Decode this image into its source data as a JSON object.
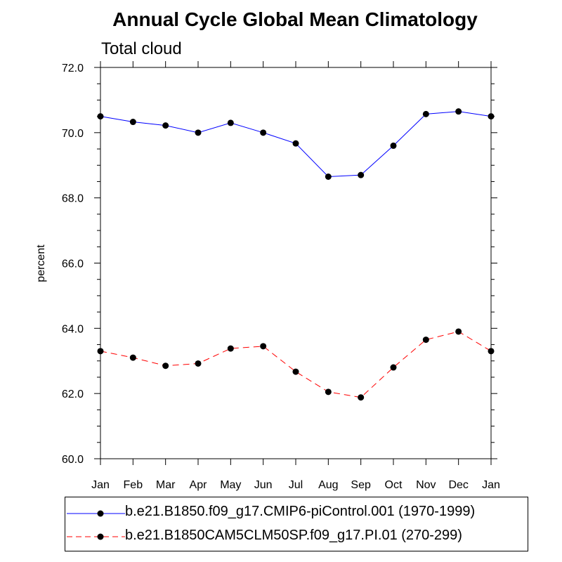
{
  "chart_data": {
    "type": "line",
    "title": "Annual Cycle Global Mean Climatology",
    "subtitle": "Total cloud",
    "xlabel": "",
    "ylabel": "percent",
    "categories": [
      "Jan",
      "Feb",
      "Mar",
      "Apr",
      "May",
      "Jun",
      "Jul",
      "Aug",
      "Sep",
      "Oct",
      "Nov",
      "Dec",
      "Jan"
    ],
    "ylim": [
      60.0,
      72.0
    ],
    "yticks": [
      60.0,
      62.0,
      64.0,
      66.0,
      68.0,
      70.0,
      72.0
    ],
    "ytick_labels": [
      "60.0",
      "62.0",
      "64.0",
      "66.0",
      "68.0",
      "70.0",
      "72.0"
    ],
    "grid": false,
    "legend_position": "bottom",
    "series": [
      {
        "name": "b.e21.B1850.f09_g17.CMIP6-piControl.001 (1970-1999)",
        "color": "#0000ff",
        "line_style": "solid",
        "values": [
          70.5,
          70.33,
          70.22,
          70.0,
          70.3,
          70.0,
          69.67,
          68.65,
          68.7,
          69.6,
          70.57,
          70.65,
          70.5
        ]
      },
      {
        "name": "b.e21.B1850CAM5CLM50SP.f09_g17.PI.01 (270-299)",
        "color": "#ff0000",
        "line_style": "dashed",
        "values": [
          63.3,
          63.1,
          62.85,
          62.92,
          63.38,
          63.45,
          62.67,
          62.05,
          61.88,
          62.8,
          63.65,
          63.9,
          63.3
        ]
      }
    ]
  }
}
